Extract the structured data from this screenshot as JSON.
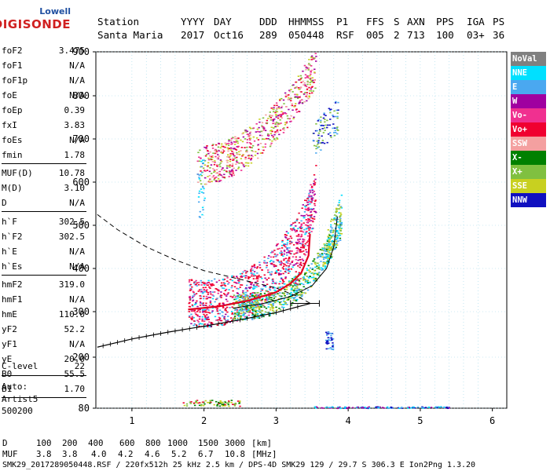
{
  "logo": {
    "line1": "Lowell",
    "line2": "DIGISONDE"
  },
  "header": {
    "labels": [
      "Station",
      "YYYY",
      "DAY",
      "DDD",
      "HHMMSS",
      "P1",
      "FFS",
      "S",
      "AXN",
      "PPS",
      "IGA",
      "PS"
    ],
    "values": [
      "Santa Maria",
      "2017",
      "Oct16",
      "289",
      "050448",
      "RSF",
      "005",
      "2",
      "713",
      "100",
      "03+",
      "36"
    ]
  },
  "params": {
    "group1": [
      {
        "k": "foF2",
        "v": "3.475"
      },
      {
        "k": "foF1",
        "v": "N/A"
      },
      {
        "k": "foF1p",
        "v": "N/A"
      },
      {
        "k": "foE",
        "v": "N/A"
      },
      {
        "k": "foEp",
        "v": "0.39"
      },
      {
        "k": "fxI",
        "v": "3.83"
      },
      {
        "k": "foEs",
        "v": "N/A"
      },
      {
        "k": "fmin",
        "v": "1.78"
      }
    ],
    "group2": [
      {
        "k": "MUF(D)",
        "v": "10.78"
      },
      {
        "k": "M(D)",
        "v": "3.10"
      },
      {
        "k": "D",
        "v": "N/A"
      }
    ],
    "group3": [
      {
        "k": "h`F",
        "v": "302.5"
      },
      {
        "k": "h`F2",
        "v": "302.5"
      },
      {
        "k": "h`E",
        "v": "N/A"
      },
      {
        "k": "h`Es",
        "v": "N/A"
      }
    ],
    "group4": [
      {
        "k": "hmF2",
        "v": "319.0"
      },
      {
        "k": "hmF1",
        "v": "N/A"
      },
      {
        "k": "hmE",
        "v": "110.0"
      },
      {
        "k": "yF2",
        "v": "52.2"
      },
      {
        "k": "yF1",
        "v": "N/A"
      },
      {
        "k": "yE",
        "v": "20.0"
      },
      {
        "k": "B0",
        "v": "55.5"
      },
      {
        "k": "B1",
        "v": "1.70"
      }
    ],
    "clevel": {
      "k": "C-level",
      "v": "22"
    },
    "auto": [
      "Auto:",
      "Artist5",
      "500200"
    ]
  },
  "legend": [
    {
      "label": "NoVal",
      "color": "#808080"
    },
    {
      "label": "NNE",
      "color": "#00e0ff"
    },
    {
      "label": "E",
      "color": "#4aa8f0"
    },
    {
      "label": "W",
      "color": "#a000a0"
    },
    {
      "label": "Vo-",
      "color": "#f03090"
    },
    {
      "label": "Vo+",
      "color": "#f00030"
    },
    {
      "label": "SSW",
      "color": "#f4a0a0"
    },
    {
      "label": "X-",
      "color": "#008000"
    },
    {
      "label": "X+",
      "color": "#80c040"
    },
    {
      "label": "SSE",
      "color": "#c8d020"
    },
    {
      "label": "NNW",
      "color": "#1010c0"
    }
  ],
  "chart_data": {
    "type": "scatter",
    "title": "",
    "xlabel": "",
    "ylabel": "",
    "xlim": [
      0.5,
      6.2
    ],
    "ylim": [
      80,
      900
    ],
    "x_ticks": [
      1,
      2,
      3,
      4,
      5,
      6
    ],
    "y_ticks": [
      80,
      200,
      300,
      400,
      500,
      600,
      700,
      800,
      900
    ],
    "grid": true,
    "legend_position": "right",
    "series": [
      {
        "name": "Vo+",
        "points": [
          [
            1.78,
            305
          ],
          [
            2.2,
            312
          ],
          [
            2.6,
            325
          ],
          [
            3.0,
            345
          ],
          [
            3.2,
            365
          ],
          [
            3.35,
            390
          ],
          [
            3.45,
            430
          ],
          [
            3.47,
            480
          ]
        ]
      },
      {
        "name": "X+",
        "points": [
          [
            2.4,
            308
          ],
          [
            2.8,
            318
          ],
          [
            3.2,
            335
          ],
          [
            3.5,
            360
          ],
          [
            3.7,
            400
          ],
          [
            3.8,
            450
          ],
          [
            3.85,
            520
          ]
        ]
      },
      {
        "name": "Vo+",
        "points": [
          [
            2.0,
            630
          ],
          [
            2.4,
            655
          ],
          [
            2.8,
            690
          ],
          [
            3.1,
            730
          ],
          [
            3.3,
            790
          ],
          [
            3.45,
            880
          ]
        ]
      }
    ],
    "profile_points": [
      [
        0.52,
        222
      ],
      [
        1.0,
        240
      ],
      [
        1.5,
        255
      ],
      [
        2.0,
        268
      ],
      [
        2.5,
        282
      ],
      [
        3.0,
        298
      ],
      [
        3.475,
        319
      ]
    ],
    "dashed_curve": [
      [
        0.52,
        525
      ],
      [
        0.8,
        490
      ],
      [
        1.2,
        450
      ],
      [
        1.6,
        420
      ],
      [
        2.0,
        395
      ],
      [
        2.5,
        375
      ],
      [
        3.0,
        355
      ],
      [
        3.3,
        335
      ],
      [
        3.475,
        319
      ]
    ],
    "error_bar": {
      "x1": 3.2,
      "x2": 3.6,
      "y": 319
    }
  },
  "footer": {
    "row1_label": "D",
    "row1_values": [
      "100",
      "200",
      "400",
      "600",
      "800",
      "1000",
      "1500",
      "3000",
      "[km]"
    ],
    "row2_label": "MUF",
    "row2_values": [
      "3.8",
      "3.8",
      "4.0",
      "4.2",
      "4.6",
      "5.2",
      "6.7",
      "10.8",
      "[MHz]"
    ],
    "info": "SMK29_2017289050448.RSF / 220fx512h 25 kHz 2.5 km / DPS-4D SMK29 129 / 29.7 S 306.3 E Ion2Png 1.3.20"
  }
}
